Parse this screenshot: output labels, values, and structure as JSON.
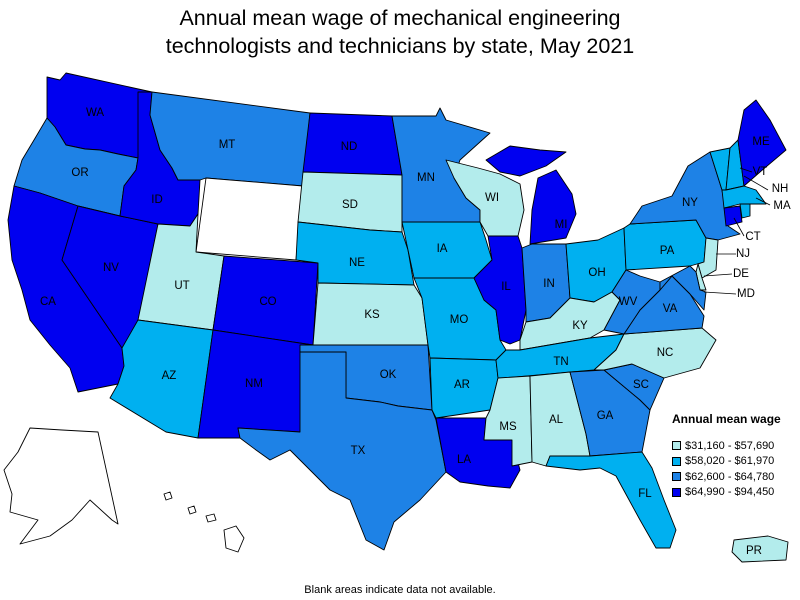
{
  "title_line1": "Annual mean wage of mechanical engineering",
  "title_line2": "technologists and technicians by state, May 2021",
  "note": "Blank areas indicate data not available.",
  "legend": {
    "title": "Annual mean wage",
    "items": [
      {
        "label": "$31,160 - $57,690",
        "color": "#b3ecec"
      },
      {
        "label": "$58,020 - $61,970",
        "color": "#00b0f0"
      },
      {
        "label": "$62,600 - $64,780",
        "color": "#1e82e6"
      },
      {
        "label": "$64,990 - $94,450",
        "color": "#0000f0"
      }
    ],
    "no_data_color": "#ffffff"
  },
  "states": {
    "WA": {
      "label": "WA",
      "tier": 3
    },
    "OR": {
      "label": "OR",
      "tier": 2
    },
    "CA": {
      "label": "CA",
      "tier": 3
    },
    "NV": {
      "label": "NV",
      "tier": 3
    },
    "ID": {
      "label": "ID",
      "tier": 3
    },
    "MT": {
      "label": "MT",
      "tier": 2
    },
    "WY": {
      "label": "",
      "tier": null
    },
    "UT": {
      "label": "UT",
      "tier": 0
    },
    "AZ": {
      "label": "AZ",
      "tier": 1
    },
    "CO": {
      "label": "CO",
      "tier": 3
    },
    "NM": {
      "label": "NM",
      "tier": 3
    },
    "ND": {
      "label": "ND",
      "tier": 3
    },
    "SD": {
      "label": "SD",
      "tier": 0
    },
    "NE": {
      "label": "NE",
      "tier": 1
    },
    "KS": {
      "label": "KS",
      "tier": 0
    },
    "OK": {
      "label": "OK",
      "tier": 2
    },
    "TX": {
      "label": "TX",
      "tier": 2
    },
    "MN": {
      "label": "MN",
      "tier": 2
    },
    "IA": {
      "label": "IA",
      "tier": 1
    },
    "MO": {
      "label": "MO",
      "tier": 1
    },
    "AR": {
      "label": "AR",
      "tier": 1
    },
    "LA": {
      "label": "LA",
      "tier": 3
    },
    "WI": {
      "label": "WI",
      "tier": 0
    },
    "IL": {
      "label": "IL",
      "tier": 3
    },
    "MI": {
      "label": "MI",
      "tier": 3
    },
    "IN": {
      "label": "IN",
      "tier": 2
    },
    "OH": {
      "label": "OH",
      "tier": 1
    },
    "KY": {
      "label": "KY",
      "tier": 0
    },
    "TN": {
      "label": "TN",
      "tier": 1
    },
    "MS": {
      "label": "MS",
      "tier": 0
    },
    "AL": {
      "label": "AL",
      "tier": 0
    },
    "GA": {
      "label": "GA",
      "tier": 2
    },
    "FL": {
      "label": "FL",
      "tier": 1
    },
    "SC": {
      "label": "SC",
      "tier": 2
    },
    "NC": {
      "label": "NC",
      "tier": 0
    },
    "VA": {
      "label": "VA",
      "tier": 2
    },
    "WV": {
      "label": "WV",
      "tier": 2
    },
    "PA": {
      "label": "PA",
      "tier": 1
    },
    "NY": {
      "label": "NY",
      "tier": 2
    },
    "VT": {
      "label": "VT",
      "tier": 1
    },
    "NH": {
      "label": "NH",
      "tier": 1
    },
    "ME": {
      "label": "ME",
      "tier": 3
    },
    "MA": {
      "label": "MA",
      "tier": 1
    },
    "CT": {
      "label": "CT",
      "tier": 3
    },
    "RI": {
      "label": "",
      "tier": 1
    },
    "NJ": {
      "label": "NJ",
      "tier": 0
    },
    "DE": {
      "label": "DE",
      "tier": 0
    },
    "MD": {
      "label": "MD",
      "tier": 2
    },
    "AK": {
      "label": "",
      "tier": null
    },
    "HI": {
      "label": "",
      "tier": null
    },
    "PR": {
      "label": "PR",
      "tier": 0
    }
  }
}
